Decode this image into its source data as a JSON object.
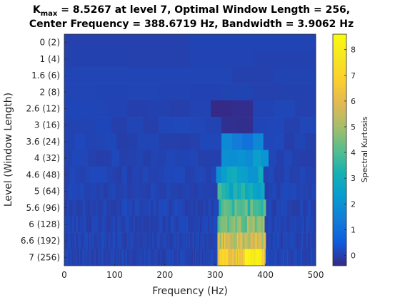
{
  "figure": {
    "title_line1_prefix": "K",
    "title_line1_sub": "max",
    "title_line1_rest": " = 8.5267 at level 7, Optimal Window Length = 256,",
    "title_line2": "Center Frequency = 388.6719 Hz, Bandwidth = 3.9062 Hz"
  },
  "chart_data": {
    "type": "heatmap",
    "xlabel": "Frequency (Hz)",
    "ylabel": "Level (Window Length)",
    "xlim": [
      0,
      500
    ],
    "x_ticks": [
      0,
      100,
      200,
      300,
      400,
      500
    ],
    "levels": [
      {
        "label": "0   (2)",
        "segments": 2
      },
      {
        "label": "1   (4)",
        "segments": 4
      },
      {
        "label": "1.6   (6)",
        "segments": 6
      },
      {
        "label": "2   (8)",
        "segments": 8
      },
      {
        "label": "2.6  (12)",
        "segments": 12
      },
      {
        "label": "3  (16)",
        "segments": 16
      },
      {
        "label": "3.6  (24)",
        "segments": 24
      },
      {
        "label": "4  (32)",
        "segments": 32
      },
      {
        "label": "4.6  (48)",
        "segments": 48
      },
      {
        "label": "5  (64)",
        "segments": 64
      },
      {
        "label": "5.6  (96)",
        "segments": 96
      },
      {
        "label": "6 (128)",
        "segments": 128
      },
      {
        "label": "6.6 (192)",
        "segments": 192
      },
      {
        "label": "7 (256)",
        "segments": 256
      }
    ],
    "band_hz": [
      305,
      400
    ],
    "colorbar": {
      "label": "Spectral Kurtosis",
      "range": [
        -0.4,
        8.6
      ],
      "ticks": [
        0,
        1,
        2,
        3,
        4,
        5,
        6,
        7,
        8
      ]
    },
    "kmax": 8.5267,
    "kmax_level": 7,
    "center_frequency_hz": 388.6719,
    "bandwidth_hz": 3.9062
  }
}
